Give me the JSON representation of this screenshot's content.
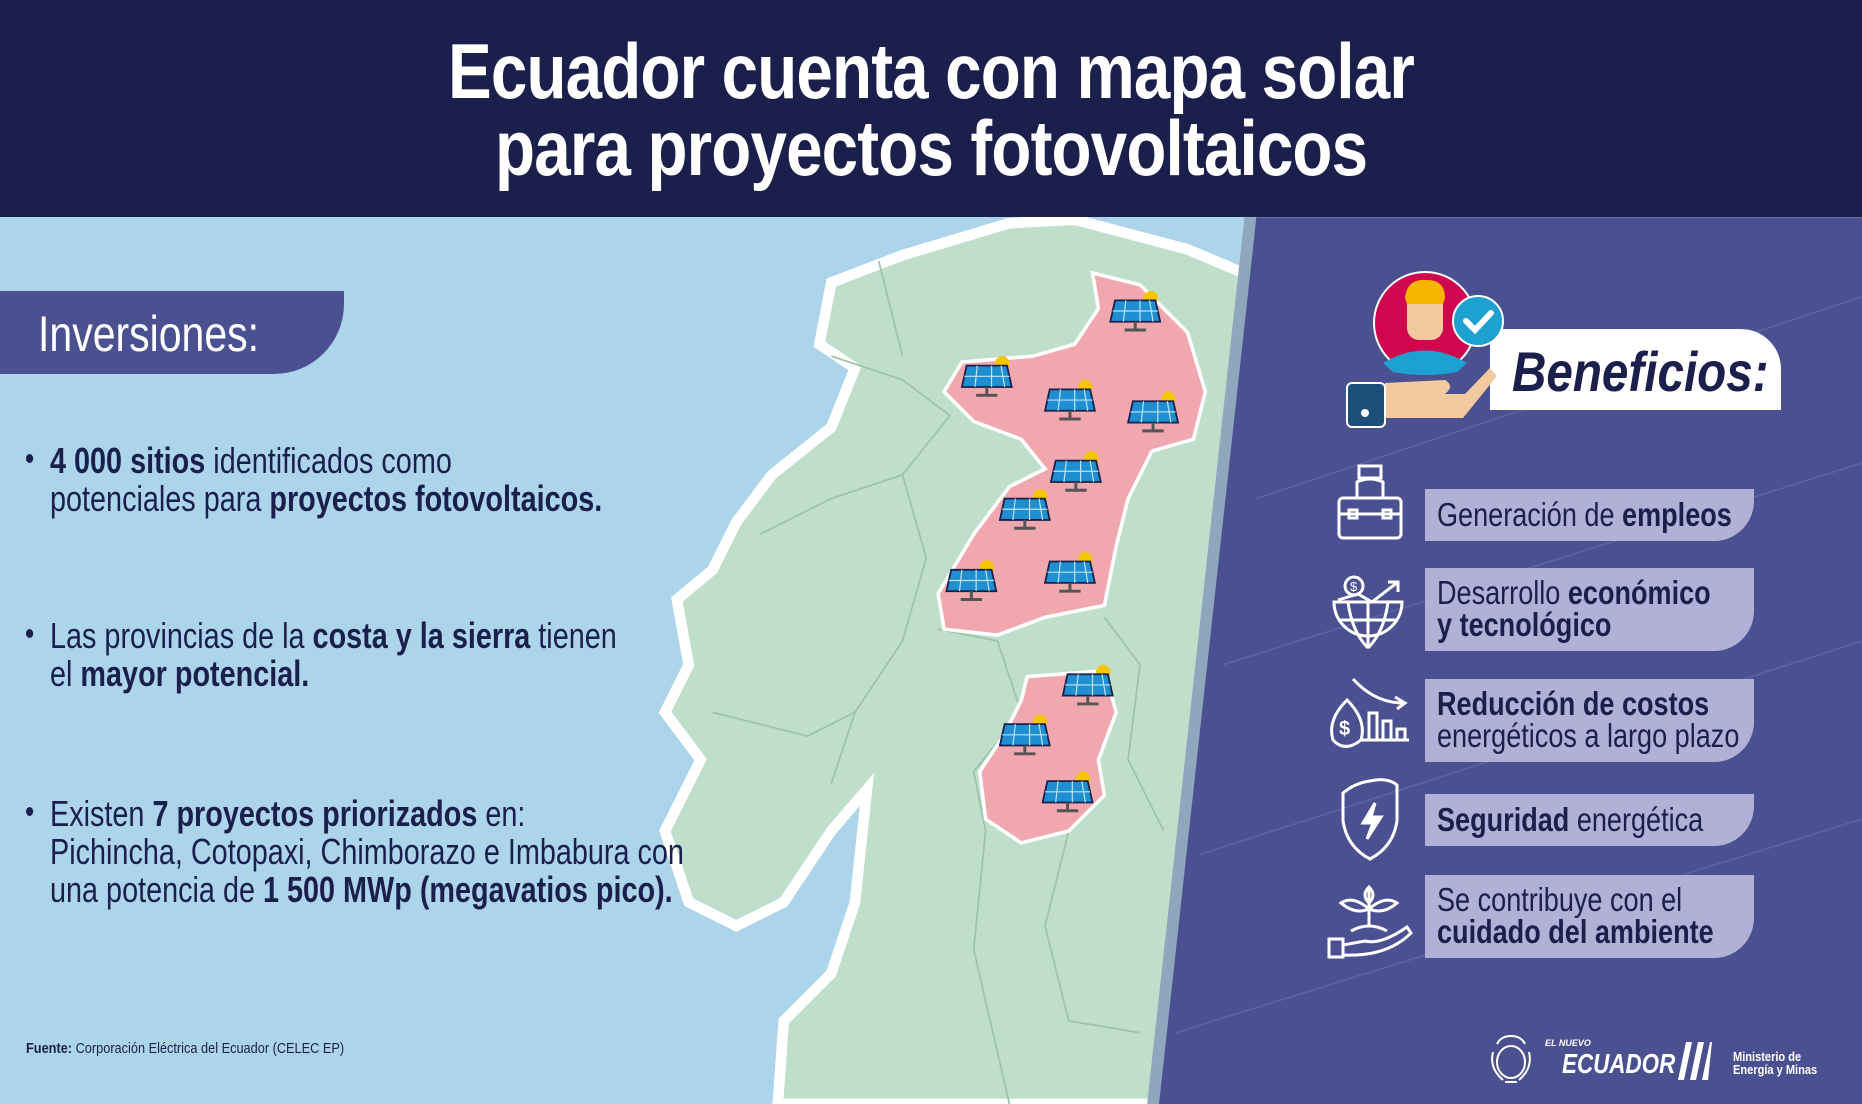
{
  "header": {
    "title_line1": "Ecuador cuenta con mapa solar",
    "title_line2": "para proyectos fotovoltaicos"
  },
  "investments": {
    "heading": "Inversiones:",
    "bullets": [
      {
        "l1_b1": "4 000 sitios",
        "l1_t1": " identificados como",
        "l2_t1": "potenciales para ",
        "l2_b1": "proyectos fotovoltaicos."
      },
      {
        "l1_t1": "Las provincias de la ",
        "l1_b1": "costa y la sierra",
        "l1_t2": " tienen",
        "l2_t1": "el ",
        "l2_b1": "mayor potencial."
      },
      {
        "l1_t1": "Existen ",
        "l1_b1": "7 proyectos priorizados",
        "l1_t2": " en:",
        "l2_t1": "Pichincha, Cotopaxi, Chimborazo e Imbabura con",
        "l3_t1": "una potencia de ",
        "l3_b1": "1 500 MWp (megavatios pico)."
      }
    ]
  },
  "footer": {
    "source_label": "Fuente:",
    "source_text": " Corporación Eléctrica del Ecuador (CELEC EP)"
  },
  "benefits": {
    "heading": "Beneficios:",
    "items": [
      {
        "icon": "briefcase-icon",
        "a": "Generación de ",
        "b": "empleos"
      },
      {
        "icon": "globe-growth-icon",
        "a": "Desarrollo ",
        "b": "económico",
        "c": "y tecnológico"
      },
      {
        "icon": "money-bag-chart-icon",
        "b": "Reducción de costos",
        "c": "energéticos a largo plazo"
      },
      {
        "icon": "shield-bolt-icon",
        "b": "Seguridad",
        "a": " energética"
      },
      {
        "icon": "plant-hand-icon",
        "a": "Se contribuye con el",
        "b": "cuidado del ambiente"
      }
    ]
  },
  "logos": {
    "brand_small": "EL NUEVO",
    "brand": "ECUADOR",
    "ministry_l1": "Ministerio de",
    "ministry_l2": "Energía y Minas"
  },
  "colors": {
    "header": "#1b1f4b",
    "sea": "#acd5ec",
    "land": "#c0dfca",
    "highlight_provinces": "#f0a7ad",
    "panel": "#4b5190",
    "pill": "#b1b0d6"
  }
}
